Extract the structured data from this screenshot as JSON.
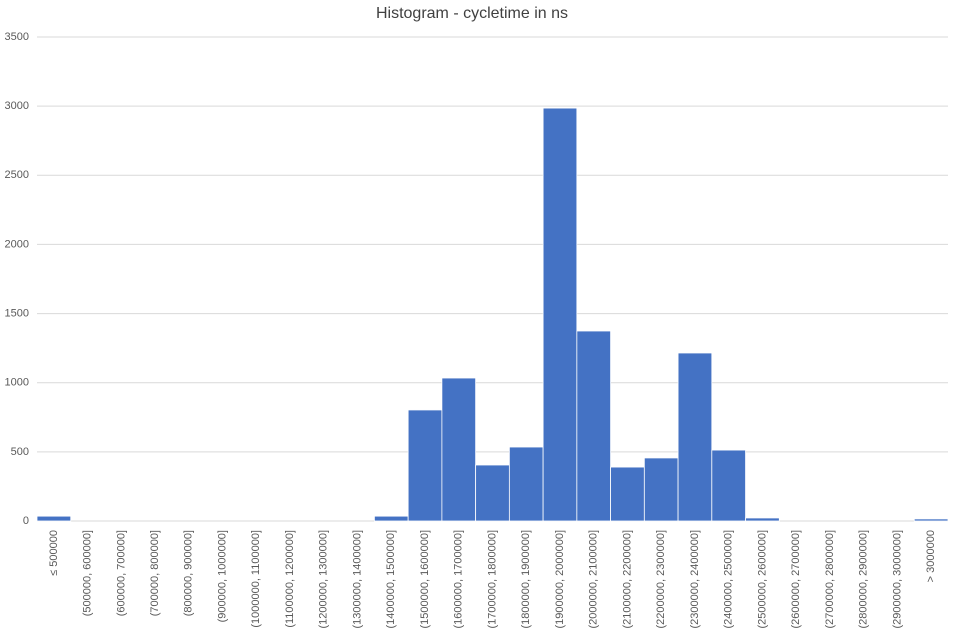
{
  "chart_data": {
    "type": "bar",
    "title": "Histogram - cycletime in ns",
    "categories": [
      "≤ 500000",
      "(500000, 600000]",
      "(600000, 700000]",
      "(700000, 800000]",
      "(800000, 900000]",
      "(900000, 1000000]",
      "(1000000, 1100000]",
      "(1100000, 1200000]",
      "(1200000, 1300000]",
      "(1300000, 1400000]",
      "(1400000, 1500000]",
      "(1500000, 1600000]",
      "(1600000, 1700000]",
      "(1700000, 1800000]",
      "(1800000, 1900000]",
      "(1900000, 2000000]",
      "(2000000, 2100000]",
      "(2100000, 2200000]",
      "(2200000, 2300000]",
      "(2300000, 2400000]",
      "(2400000, 2500000]",
      "(2500000, 2600000]",
      "(2600000, 2700000]",
      "(2700000, 2800000]",
      "(2800000, 2900000]",
      "(2900000, 3000000]",
      "> 3000000"
    ],
    "values": [
      35,
      0,
      0,
      0,
      0,
      0,
      0,
      0,
      0,
      0,
      35,
      803,
      1034,
      405,
      535,
      2986,
      1374,
      390,
      456,
      1215,
      513,
      22,
      0,
      0,
      0,
      0,
      15
    ],
    "color": "#4472c4",
    "ylim": [
      0,
      3500
    ],
    "yticks": [
      0,
      500,
      1000,
      1500,
      2000,
      2500,
      3000,
      3500
    ],
    "grid": true
  }
}
